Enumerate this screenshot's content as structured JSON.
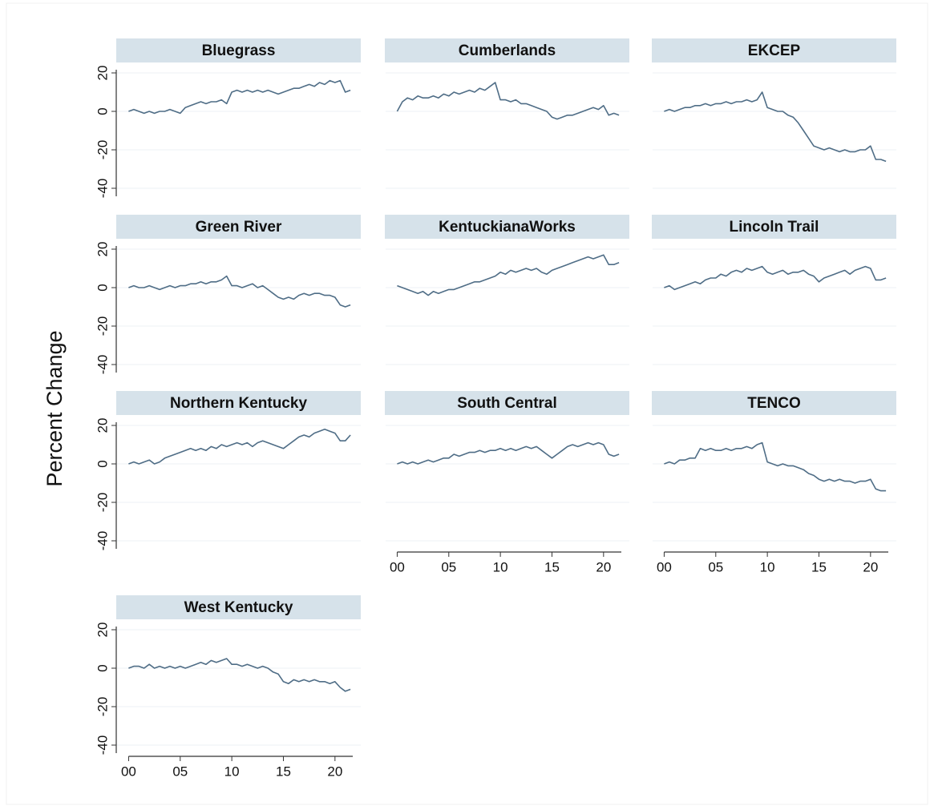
{
  "y_label": "Percent Change",
  "chart_data": [
    {
      "type": "line",
      "title": "Bluegrass",
      "y_axis": true,
      "x_axis": false,
      "color": "#4f6d86",
      "grid": true,
      "xlim": [
        -1.2,
        22.5
      ],
      "ylim": [
        -45,
        25
      ],
      "yticks": [
        20,
        0,
        -20,
        -40
      ],
      "x": [
        0,
        0.5,
        1,
        1.5,
        2,
        2.5,
        3,
        3.5,
        4,
        4.5,
        5,
        5.5,
        6,
        6.5,
        7,
        7.5,
        8,
        8.5,
        9,
        9.5,
        10,
        10.5,
        11,
        11.5,
        12,
        12.5,
        13,
        13.5,
        14,
        14.5,
        15,
        15.5,
        16,
        16.5,
        17,
        17.5,
        18,
        18.5,
        19,
        19.5,
        20,
        20.5,
        21,
        21.5
      ],
      "values": [
        0,
        1,
        0,
        -1,
        0,
        -1,
        0,
        0,
        1,
        0,
        -1,
        2,
        3,
        4,
        5,
        4,
        5,
        5,
        6,
        4,
        10,
        11,
        10,
        11,
        10,
        11,
        10,
        11,
        10,
        9,
        10,
        11,
        12,
        12,
        13,
        14,
        13,
        15,
        14,
        16,
        15,
        16,
        10,
        11
      ]
    },
    {
      "type": "line",
      "title": "Cumberlands",
      "y_axis": false,
      "x_axis": false,
      "color": "#4f6d86",
      "grid": true,
      "xlim": [
        -1.2,
        22.5
      ],
      "ylim": [
        -45,
        25
      ],
      "yticks": [
        20,
        0,
        -20,
        -40
      ],
      "x": [
        0,
        0.5,
        1,
        1.5,
        2,
        2.5,
        3,
        3.5,
        4,
        4.5,
        5,
        5.5,
        6,
        6.5,
        7,
        7.5,
        8,
        8.5,
        9,
        9.5,
        10,
        10.5,
        11,
        11.5,
        12,
        12.5,
        13,
        13.5,
        14,
        14.5,
        15,
        15.5,
        16,
        16.5,
        17,
        17.5,
        18,
        18.5,
        19,
        19.5,
        20,
        20.5,
        21,
        21.5
      ],
      "values": [
        0,
        5,
        7,
        6,
        8,
        7,
        7,
        8,
        7,
        9,
        8,
        10,
        9,
        10,
        11,
        10,
        12,
        11,
        13,
        15,
        6,
        6,
        5,
        6,
        4,
        4,
        3,
        2,
        1,
        0,
        -3,
        -4,
        -3,
        -2,
        -2,
        -1,
        0,
        1,
        2,
        1,
        3,
        -2,
        -1,
        -2
      ]
    },
    {
      "type": "line",
      "title": "EKCEP",
      "y_axis": false,
      "x_axis": false,
      "color": "#4f6d86",
      "grid": true,
      "xlim": [
        -1.2,
        22.5
      ],
      "ylim": [
        -45,
        25
      ],
      "yticks": [
        20,
        0,
        -20,
        -40
      ],
      "x": [
        0,
        0.5,
        1,
        1.5,
        2,
        2.5,
        3,
        3.5,
        4,
        4.5,
        5,
        5.5,
        6,
        6.5,
        7,
        7.5,
        8,
        8.5,
        9,
        9.5,
        10,
        10.5,
        11,
        11.5,
        12,
        12.5,
        13,
        13.5,
        14,
        14.5,
        15,
        15.5,
        16,
        16.5,
        17,
        17.5,
        18,
        18.5,
        19,
        19.5,
        20,
        20.5,
        21,
        21.5
      ],
      "values": [
        0,
        1,
        0,
        1,
        2,
        2,
        3,
        3,
        4,
        3,
        4,
        4,
        5,
        4,
        5,
        5,
        6,
        5,
        6,
        10,
        2,
        1,
        0,
        0,
        -2,
        -3,
        -6,
        -10,
        -14,
        -18,
        -19,
        -20,
        -19,
        -20,
        -21,
        -20,
        -21,
        -21,
        -20,
        -20,
        -18,
        -25,
        -25,
        -26
      ]
    },
    {
      "type": "line",
      "title": "Green River",
      "y_axis": true,
      "x_axis": false,
      "color": "#4f6d86",
      "grid": true,
      "xlim": [
        -1.2,
        22.5
      ],
      "ylim": [
        -45,
        25
      ],
      "yticks": [
        20,
        0,
        -20,
        -40
      ],
      "x": [
        0,
        0.5,
        1,
        1.5,
        2,
        2.5,
        3,
        3.5,
        4,
        4.5,
        5,
        5.5,
        6,
        6.5,
        7,
        7.5,
        8,
        8.5,
        9,
        9.5,
        10,
        10.5,
        11,
        11.5,
        12,
        12.5,
        13,
        13.5,
        14,
        14.5,
        15,
        15.5,
        16,
        16.5,
        17,
        17.5,
        18,
        18.5,
        19,
        19.5,
        20,
        20.5,
        21,
        21.5
      ],
      "values": [
        0,
        1,
        0,
        0,
        1,
        0,
        -1,
        0,
        1,
        0,
        1,
        1,
        2,
        2,
        3,
        2,
        3,
        3,
        4,
        6,
        1,
        1,
        0,
        1,
        2,
        0,
        1,
        -1,
        -3,
        -5,
        -6,
        -5,
        -6,
        -4,
        -3,
        -4,
        -3,
        -3,
        -4,
        -4,
        -5,
        -9,
        -10,
        -9
      ]
    },
    {
      "type": "line",
      "title": "KentuckianaWorks",
      "y_axis": false,
      "x_axis": false,
      "color": "#4f6d86",
      "grid": true,
      "xlim": [
        -1.2,
        22.5
      ],
      "ylim": [
        -45,
        25
      ],
      "yticks": [
        20,
        0,
        -20,
        -40
      ],
      "x": [
        0,
        0.5,
        1,
        1.5,
        2,
        2.5,
        3,
        3.5,
        4,
        4.5,
        5,
        5.5,
        6,
        6.5,
        7,
        7.5,
        8,
        8.5,
        9,
        9.5,
        10,
        10.5,
        11,
        11.5,
        12,
        12.5,
        13,
        13.5,
        14,
        14.5,
        15,
        15.5,
        16,
        16.5,
        17,
        17.5,
        18,
        18.5,
        19,
        19.5,
        20,
        20.5,
        21,
        21.5
      ],
      "values": [
        1,
        0,
        -1,
        -2,
        -3,
        -2,
        -4,
        -2,
        -3,
        -2,
        -1,
        -1,
        0,
        1,
        2,
        3,
        3,
        4,
        5,
        6,
        8,
        7,
        9,
        8,
        9,
        10,
        9,
        10,
        8,
        7,
        9,
        10,
        11,
        12,
        13,
        14,
        15,
        16,
        15,
        16,
        17,
        12,
        12,
        13
      ]
    },
    {
      "type": "line",
      "title": "Lincoln Trail",
      "y_axis": false,
      "x_axis": false,
      "color": "#4f6d86",
      "grid": true,
      "xlim": [
        -1.2,
        22.5
      ],
      "ylim": [
        -45,
        25
      ],
      "yticks": [
        20,
        0,
        -20,
        -40
      ],
      "x": [
        0,
        0.5,
        1,
        1.5,
        2,
        2.5,
        3,
        3.5,
        4,
        4.5,
        5,
        5.5,
        6,
        6.5,
        7,
        7.5,
        8,
        8.5,
        9,
        9.5,
        10,
        10.5,
        11,
        11.5,
        12,
        12.5,
        13,
        13.5,
        14,
        14.5,
        15,
        15.5,
        16,
        16.5,
        17,
        17.5,
        18,
        18.5,
        19,
        19.5,
        20,
        20.5,
        21,
        21.5
      ],
      "values": [
        0,
        1,
        -1,
        0,
        1,
        2,
        3,
        2,
        4,
        5,
        5,
        7,
        6,
        8,
        9,
        8,
        10,
        9,
        10,
        11,
        8,
        7,
        8,
        9,
        7,
        8,
        8,
        9,
        7,
        6,
        3,
        5,
        6,
        7,
        8,
        9,
        7,
        9,
        10,
        11,
        10,
        4,
        4,
        5
      ]
    },
    {
      "type": "line",
      "title": "Northern Kentucky",
      "y_axis": true,
      "x_axis": false,
      "color": "#4f6d86",
      "grid": true,
      "xlim": [
        -1.2,
        22.5
      ],
      "ylim": [
        -45,
        25
      ],
      "yticks": [
        20,
        0,
        -20,
        -40
      ],
      "x": [
        0,
        0.5,
        1,
        1.5,
        2,
        2.5,
        3,
        3.5,
        4,
        4.5,
        5,
        5.5,
        6,
        6.5,
        7,
        7.5,
        8,
        8.5,
        9,
        9.5,
        10,
        10.5,
        11,
        11.5,
        12,
        12.5,
        13,
        13.5,
        14,
        14.5,
        15,
        15.5,
        16,
        16.5,
        17,
        17.5,
        18,
        18.5,
        19,
        19.5,
        20,
        20.5,
        21,
        21.5
      ],
      "values": [
        0,
        1,
        0,
        1,
        2,
        0,
        1,
        3,
        4,
        5,
        6,
        7,
        8,
        7,
        8,
        7,
        9,
        8,
        10,
        9,
        10,
        11,
        10,
        11,
        9,
        11,
        12,
        11,
        10,
        9,
        8,
        10,
        12,
        14,
        15,
        14,
        16,
        17,
        18,
        17,
        16,
        12,
        12,
        15
      ]
    },
    {
      "type": "line",
      "title": "South Central",
      "y_axis": false,
      "x_axis": true,
      "color": "#4f6d86",
      "grid": true,
      "xlim": [
        -1.2,
        22.5
      ],
      "ylim": [
        -45,
        25
      ],
      "yticks": [
        20,
        0,
        -20,
        -40
      ],
      "xticks": [
        {
          "value": 0,
          "label": "00"
        },
        {
          "value": 5,
          "label": "05"
        },
        10,
        15,
        20
      ],
      "x": [
        0,
        0.5,
        1,
        1.5,
        2,
        2.5,
        3,
        3.5,
        4,
        4.5,
        5,
        5.5,
        6,
        6.5,
        7,
        7.5,
        8,
        8.5,
        9,
        9.5,
        10,
        10.5,
        11,
        11.5,
        12,
        12.5,
        13,
        13.5,
        14,
        14.5,
        15,
        15.5,
        16,
        16.5,
        17,
        17.5,
        18,
        18.5,
        19,
        19.5,
        20,
        20.5,
        21,
        21.5
      ],
      "values": [
        0,
        1,
        0,
        1,
        0,
        1,
        2,
        1,
        2,
        3,
        3,
        5,
        4,
        5,
        6,
        6,
        7,
        6,
        7,
        7,
        8,
        7,
        8,
        7,
        8,
        9,
        8,
        9,
        7,
        5,
        3,
        5,
        7,
        9,
        10,
        9,
        10,
        11,
        10,
        11,
        10,
        5,
        4,
        5
      ]
    },
    {
      "type": "line",
      "title": "TENCO",
      "y_axis": false,
      "x_axis": true,
      "color": "#4f6d86",
      "grid": true,
      "xlim": [
        -1.2,
        22.5
      ],
      "ylim": [
        -45,
        25
      ],
      "yticks": [
        20,
        0,
        -20,
        -40
      ],
      "xticks": [
        {
          "value": 0,
          "label": "00"
        },
        {
          "value": 5,
          "label": "05"
        },
        10,
        15,
        20
      ],
      "x": [
        0,
        0.5,
        1,
        1.5,
        2,
        2.5,
        3,
        3.5,
        4,
        4.5,
        5,
        5.5,
        6,
        6.5,
        7,
        7.5,
        8,
        8.5,
        9,
        9.5,
        10,
        10.5,
        11,
        11.5,
        12,
        12.5,
        13,
        13.5,
        14,
        14.5,
        15,
        15.5,
        16,
        16.5,
        17,
        17.5,
        18,
        18.5,
        19,
        19.5,
        20,
        20.5,
        21,
        21.5
      ],
      "values": [
        0,
        1,
        0,
        2,
        2,
        3,
        3,
        8,
        7,
        8,
        7,
        7,
        8,
        7,
        8,
        8,
        9,
        8,
        10,
        11,
        1,
        0,
        -1,
        0,
        -1,
        -1,
        -2,
        -3,
        -5,
        -6,
        -8,
        -9,
        -8,
        -9,
        -8,
        -9,
        -9,
        -10,
        -9,
        -9,
        -8,
        -13,
        -14,
        -14
      ]
    },
    {
      "type": "line",
      "title": "West Kentucky",
      "y_axis": true,
      "x_axis": true,
      "color": "#4f6d86",
      "grid": true,
      "xlim": [
        -1.2,
        22.5
      ],
      "ylim": [
        -45,
        25
      ],
      "yticks": [
        20,
        0,
        -20,
        -40
      ],
      "xticks": [
        {
          "value": 0,
          "label": "00"
        },
        {
          "value": 5,
          "label": "05"
        },
        10,
        15,
        20
      ],
      "x": [
        0,
        0.5,
        1,
        1.5,
        2,
        2.5,
        3,
        3.5,
        4,
        4.5,
        5,
        5.5,
        6,
        6.5,
        7,
        7.5,
        8,
        8.5,
        9,
        9.5,
        10,
        10.5,
        11,
        11.5,
        12,
        12.5,
        13,
        13.5,
        14,
        14.5,
        15,
        15.5,
        16,
        16.5,
        17,
        17.5,
        18,
        18.5,
        19,
        19.5,
        20,
        20.5,
        21,
        21.5
      ],
      "values": [
        0,
        1,
        1,
        0,
        2,
        0,
        1,
        0,
        1,
        0,
        1,
        0,
        1,
        2,
        3,
        2,
        4,
        3,
        4,
        5,
        2,
        2,
        1,
        2,
        1,
        0,
        1,
        0,
        -2,
        -3,
        -7,
        -8,
        -6,
        -7,
        -6,
        -7,
        -6,
        -7,
        -7,
        -8,
        -7,
        -10,
        -12,
        -11
      ]
    }
  ]
}
